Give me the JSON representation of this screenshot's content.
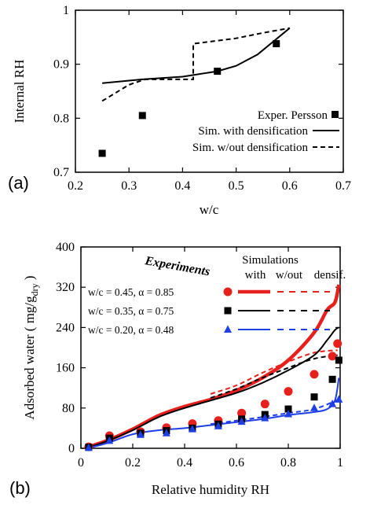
{
  "chart_data": [
    {
      "type": "line",
      "panel_label": "(a)",
      "xlabel": "w/c",
      "ylabel": "Internal RH",
      "xlim": [
        0.2,
        0.7
      ],
      "ylim": [
        0.7,
        1.0
      ],
      "xticks": [
        0.2,
        0.3,
        0.4,
        0.5,
        0.6,
        0.7
      ],
      "yticks": [
        0.7,
        0.8,
        0.9,
        1
      ],
      "xtick_labels": [
        "0.2",
        "0.3",
        "0.4",
        "0.5",
        "0.6",
        "0.7"
      ],
      "ytick_labels": [
        "0.7",
        "0.8",
        "0.9",
        "1"
      ],
      "legend_position": "bottom-right",
      "series": [
        {
          "name": "Exper. Persson",
          "style": "square-markers",
          "color": "#000000",
          "points": [
            [
              0.25,
              0.735
            ],
            [
              0.325,
              0.805
            ],
            [
              0.465,
              0.887
            ],
            [
              0.575,
              0.938
            ]
          ]
        },
        {
          "name": "Sim. with densification",
          "style": "solid",
          "color": "#000000",
          "points": [
            [
              0.25,
              0.865
            ],
            [
              0.325,
              0.872
            ],
            [
              0.4,
              0.877
            ],
            [
              0.465,
              0.887
            ],
            [
              0.5,
              0.897
            ],
            [
              0.54,
              0.918
            ],
            [
              0.6,
              0.967
            ]
          ]
        },
        {
          "name": "Sim. w/out densification",
          "style": "dashed",
          "color": "#000000",
          "points": [
            [
              0.25,
              0.832
            ],
            [
              0.3,
              0.862
            ],
            [
              0.33,
              0.872
            ],
            [
              0.42,
              0.872
            ],
            [
              0.42,
              0.938
            ],
            [
              0.5,
              0.948
            ],
            [
              0.55,
              0.958
            ],
            [
              0.6,
              0.967
            ]
          ]
        }
      ]
    },
    {
      "type": "line",
      "panel_label": "(b)",
      "xlabel": "Relative humidity RH",
      "ylabel_main": "Adsorbed water ( mg/g",
      "ylabel_sub": "dry",
      "ylabel_end": " )",
      "xlim": [
        0,
        1
      ],
      "ylim": [
        0,
        400
      ],
      "xticks": [
        0,
        0.2,
        0.4,
        0.6,
        0.8,
        1
      ],
      "yticks": [
        0,
        80,
        160,
        240,
        320,
        400
      ],
      "xtick_labels": [
        "0",
        "0.2",
        "0.4",
        "0.6",
        "0.8",
        "1"
      ],
      "ytick_labels": [
        "0",
        "80",
        "160",
        "240",
        "320",
        "400"
      ],
      "legend": {
        "experiments_label": "Experiments",
        "simulations_label": "Simulations",
        "with_label": "with",
        "without_label": "w/out",
        "densif_label": "densif.",
        "rows": [
          "w/c = 0.45, α = 0.85",
          "w/c = 0.35, α = 0.75",
          "w/c = 0.20, α = 0.48"
        ]
      },
      "series": [
        {
          "name": "w/c = 0.45, α = 0.85",
          "color": "#e8201c",
          "marker": "circle",
          "experiments": [
            [
              0.03,
              3
            ],
            [
              0.11,
              25
            ],
            [
              0.23,
              33
            ],
            [
              0.33,
              41
            ],
            [
              0.43,
              49
            ],
            [
              0.53,
              55
            ],
            [
              0.62,
              70
            ],
            [
              0.71,
              88
            ],
            [
              0.8,
              113
            ],
            [
              0.9,
              147
            ],
            [
              0.97,
              183
            ],
            [
              0.99,
              208
            ]
          ],
          "sim_with": [
            [
              0.03,
              3
            ],
            [
              0.1,
              15
            ],
            [
              0.2,
              38
            ],
            [
              0.3,
              65
            ],
            [
              0.4,
              83
            ],
            [
              0.5,
              97
            ],
            [
              0.6,
              115
            ],
            [
              0.7,
              140
            ],
            [
              0.8,
              175
            ],
            [
              0.9,
              230
            ],
            [
              0.95,
              275
            ],
            [
              0.98,
              290
            ],
            [
              0.995,
              325
            ]
          ],
          "sim_without": [
            [
              0.5,
              108
            ],
            [
              0.6,
              125
            ],
            [
              0.7,
              150
            ],
            [
              0.8,
              172
            ],
            [
              0.9,
              190
            ],
            [
              0.99,
              195
            ]
          ]
        },
        {
          "name": "w/c = 0.35, α = 0.75",
          "color": "#000000",
          "marker": "square",
          "experiments": [
            [
              0.03,
              2
            ],
            [
              0.11,
              20
            ],
            [
              0.23,
              30
            ],
            [
              0.33,
              35
            ],
            [
              0.43,
              40
            ],
            [
              0.53,
              48
            ],
            [
              0.62,
              58
            ],
            [
              0.71,
              67
            ],
            [
              0.8,
              78
            ],
            [
              0.9,
              102
            ],
            [
              0.97,
              137
            ],
            [
              0.995,
              175
            ]
          ],
          "sim_with": [
            [
              0.03,
              2
            ],
            [
              0.1,
              14
            ],
            [
              0.2,
              36
            ],
            [
              0.3,
              62
            ],
            [
              0.4,
              80
            ],
            [
              0.5,
              95
            ],
            [
              0.6,
              110
            ],
            [
              0.7,
              130
            ],
            [
              0.8,
              155
            ],
            [
              0.9,
              185
            ],
            [
              0.95,
              215
            ],
            [
              0.98,
              235
            ],
            [
              0.995,
              240
            ]
          ],
          "sim_without": [
            [
              0.5,
              100
            ],
            [
              0.6,
              118
            ],
            [
              0.7,
              140
            ],
            [
              0.8,
              160
            ],
            [
              0.9,
              178
            ],
            [
              0.99,
              185
            ]
          ]
        },
        {
          "name": "w/c = 0.20, α = 0.48",
          "color": "#1f3fe6",
          "marker": "triangle",
          "experiments": [
            [
              0.03,
              1
            ],
            [
              0.11,
              15
            ],
            [
              0.23,
              27
            ],
            [
              0.33,
              30
            ],
            [
              0.43,
              38
            ],
            [
              0.53,
              44
            ],
            [
              0.62,
              53
            ],
            [
              0.71,
              60
            ],
            [
              0.8,
              68
            ],
            [
              0.9,
              80
            ],
            [
              0.97,
              88
            ],
            [
              0.995,
              97
            ]
          ],
          "sim_with": [
            [
              0.03,
              1
            ],
            [
              0.1,
              10
            ],
            [
              0.2,
              28
            ],
            [
              0.3,
              36
            ],
            [
              0.4,
              40
            ],
            [
              0.5,
              46
            ],
            [
              0.6,
              52
            ],
            [
              0.7,
              58
            ],
            [
              0.8,
              66
            ],
            [
              0.9,
              72
            ],
            [
              0.95,
              78
            ],
            [
              0.98,
              95
            ],
            [
              0.995,
              140
            ]
          ],
          "sim_without": [
            [
              0.5,
              48
            ],
            [
              0.6,
              55
            ],
            [
              0.7,
              62
            ],
            [
              0.8,
              70
            ],
            [
              0.9,
              78
            ],
            [
              0.99,
              96
            ]
          ]
        }
      ]
    }
  ]
}
